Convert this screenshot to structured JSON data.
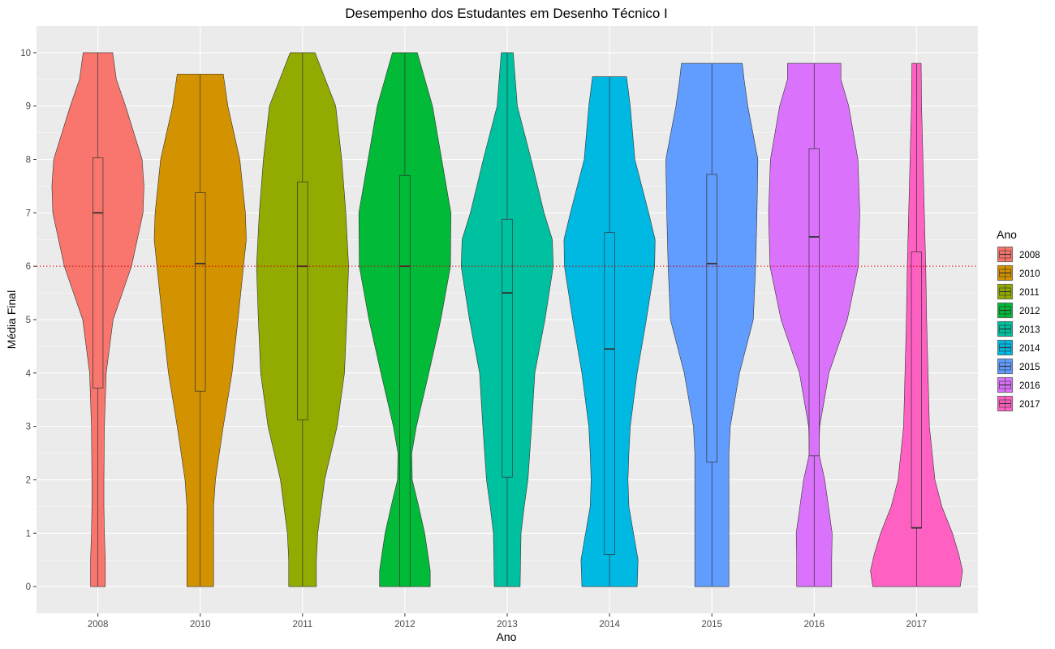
{
  "chart_data": {
    "type": "violin",
    "title": "Desempenho dos Estudantes em Desenho Técnico I",
    "xlabel": "Ano",
    "ylabel": "Média Final",
    "ylim": [
      -0.5,
      10.5
    ],
    "yticks": [
      0,
      1,
      2,
      3,
      4,
      5,
      6,
      7,
      8,
      9,
      10
    ],
    "reference_line": {
      "y": 6,
      "style": "dotted",
      "color": "#cc0000"
    },
    "legend": {
      "title": "Ano",
      "position": "right"
    },
    "grid": true,
    "background": "#ebebeb",
    "categories": [
      "2008",
      "2010",
      "2011",
      "2012",
      "2013",
      "2014",
      "2015",
      "2016",
      "2017"
    ],
    "series": [
      {
        "name": "2008",
        "color": "#F8766D",
        "min": 0,
        "max": 10,
        "q1": 3.72,
        "median": 7.0,
        "q3": 8.03,
        "density": [
          [
            0,
            0.16
          ],
          [
            0.5,
            0.16
          ],
          [
            1,
            0.14
          ],
          [
            1.5,
            0.13
          ],
          [
            2,
            0.13
          ],
          [
            3,
            0.14
          ],
          [
            4,
            0.18
          ],
          [
            5,
            0.33
          ],
          [
            6,
            0.73
          ],
          [
            7,
            0.98
          ],
          [
            7.5,
            1.0
          ],
          [
            8,
            0.96
          ],
          [
            9,
            0.6
          ],
          [
            9.5,
            0.4
          ],
          [
            10,
            0.32
          ]
        ]
      },
      {
        "name": "2010",
        "color": "#D39200",
        "min": 0,
        "max": 9.6,
        "q1": 3.66,
        "median": 6.05,
        "q3": 7.38,
        "density": [
          [
            0,
            0.29
          ],
          [
            0.5,
            0.29
          ],
          [
            1,
            0.29
          ],
          [
            1.5,
            0.29
          ],
          [
            2,
            0.33
          ],
          [
            3,
            0.5
          ],
          [
            4,
            0.69
          ],
          [
            5,
            0.82
          ],
          [
            6,
            0.94
          ],
          [
            6.5,
            1.0
          ],
          [
            7,
            0.98
          ],
          [
            8,
            0.86
          ],
          [
            9,
            0.6
          ],
          [
            9.6,
            0.5
          ]
        ]
      },
      {
        "name": "2011",
        "color": "#93AA00",
        "min": 0,
        "max": 10,
        "q1": 3.12,
        "median": 6.0,
        "q3": 7.58,
        "density": [
          [
            0,
            0.3
          ],
          [
            0.5,
            0.3
          ],
          [
            1,
            0.33
          ],
          [
            2,
            0.48
          ],
          [
            3,
            0.75
          ],
          [
            4,
            0.91
          ],
          [
            5,
            0.96
          ],
          [
            6,
            1.0
          ],
          [
            7,
            0.94
          ],
          [
            8,
            0.85
          ],
          [
            9,
            0.72
          ],
          [
            10,
            0.27
          ]
        ]
      },
      {
        "name": "2012",
        "color": "#00BA38",
        "min": 0,
        "max": 10,
        "q1": 0,
        "median": 6.0,
        "q3": 7.7,
        "density": [
          [
            0,
            0.55
          ],
          [
            0.3,
            0.55
          ],
          [
            0.6,
            0.5
          ],
          [
            1,
            0.43
          ],
          [
            1.5,
            0.3
          ],
          [
            2,
            0.16
          ],
          [
            2.5,
            0.15
          ],
          [
            3,
            0.25
          ],
          [
            4,
            0.52
          ],
          [
            5,
            0.78
          ],
          [
            6,
            0.99
          ],
          [
            7,
            1.0
          ],
          [
            8,
            0.8
          ],
          [
            9,
            0.6
          ],
          [
            10,
            0.27
          ]
        ]
      },
      {
        "name": "2013",
        "color": "#00C19F",
        "min": 0,
        "max": 10,
        "q1": 2.05,
        "median": 5.5,
        "q3": 6.88,
        "density": [
          [
            0,
            0.28
          ],
          [
            0.5,
            0.29
          ],
          [
            1,
            0.3
          ],
          [
            1.5,
            0.37
          ],
          [
            2,
            0.45
          ],
          [
            3,
            0.53
          ],
          [
            4,
            0.6
          ],
          [
            5,
            0.82
          ],
          [
            6,
            1.0
          ],
          [
            6.5,
            0.98
          ],
          [
            7,
            0.8
          ],
          [
            8,
            0.52
          ],
          [
            9,
            0.22
          ],
          [
            10,
            0.13
          ]
        ]
      },
      {
        "name": "2014",
        "color": "#00B9E3",
        "min": 0,
        "max": 9.55,
        "q1": 0.6,
        "median": 4.45,
        "q3": 6.63,
        "density": [
          [
            0,
            0.6
          ],
          [
            0.5,
            0.62
          ],
          [
            1,
            0.52
          ],
          [
            1.5,
            0.42
          ],
          [
            2,
            0.4
          ],
          [
            2.5,
            0.42
          ],
          [
            3,
            0.45
          ],
          [
            4,
            0.6
          ],
          [
            5,
            0.8
          ],
          [
            6,
            0.98
          ],
          [
            6.5,
            0.99
          ],
          [
            7,
            0.85
          ],
          [
            8,
            0.55
          ],
          [
            9,
            0.45
          ],
          [
            9.55,
            0.37
          ]
        ]
      },
      {
        "name": "2015",
        "color": "#619CFF",
        "min": 0,
        "max": 9.8,
        "q1": 2.33,
        "median": 6.05,
        "q3": 7.72,
        "density": [
          [
            0,
            0.37
          ],
          [
            0.5,
            0.37
          ],
          [
            1,
            0.37
          ],
          [
            2,
            0.37
          ],
          [
            2.5,
            0.37
          ],
          [
            3,
            0.4
          ],
          [
            4,
            0.6
          ],
          [
            5,
            0.9
          ],
          [
            6,
            0.95
          ],
          [
            7,
            0.98
          ],
          [
            8,
            1.0
          ],
          [
            9,
            0.78
          ],
          [
            9.5,
            0.7
          ],
          [
            9.8,
            0.66
          ]
        ]
      },
      {
        "name": "2016",
        "color": "#DB72FB",
        "min": 0,
        "max": 9.8,
        "q1": 2.45,
        "median": 6.55,
        "q3": 8.2,
        "density": [
          [
            0,
            0.38
          ],
          [
            0.5,
            0.38
          ],
          [
            1,
            0.39
          ],
          [
            1.5,
            0.31
          ],
          [
            2,
            0.23
          ],
          [
            2.5,
            0.1
          ],
          [
            3,
            0.12
          ],
          [
            4,
            0.32
          ],
          [
            5,
            0.72
          ],
          [
            6,
            0.96
          ],
          [
            7,
            0.99
          ],
          [
            8,
            0.95
          ],
          [
            9,
            0.75
          ],
          [
            9.5,
            0.58
          ],
          [
            9.8,
            0.58
          ]
        ]
      },
      {
        "name": "2017",
        "color": "#FF61C3",
        "min": 0,
        "max": 9.8,
        "q1": 1.1,
        "median": 1.1,
        "q3": 6.27,
        "density": [
          [
            0,
            0.95
          ],
          [
            0.3,
            1.0
          ],
          [
            0.6,
            0.92
          ],
          [
            1,
            0.78
          ],
          [
            1.5,
            0.55
          ],
          [
            2,
            0.4
          ],
          [
            3,
            0.28
          ],
          [
            4,
            0.25
          ],
          [
            5,
            0.22
          ],
          [
            6,
            0.2
          ],
          [
            7,
            0.17
          ],
          [
            8,
            0.14
          ],
          [
            9,
            0.11
          ],
          [
            9.8,
            0.1
          ]
        ]
      }
    ]
  }
}
